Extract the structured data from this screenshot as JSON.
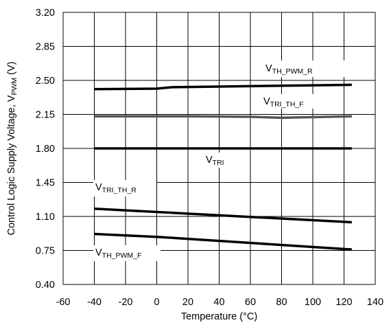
{
  "chart_data": {
    "type": "line",
    "xlabel": "Temperature (°C)",
    "ylabel": {
      "main": "Control Logic Supply Voltage, V",
      "sub": "PWM",
      "unit": " (V)"
    },
    "xlim": [
      -60,
      140
    ],
    "ylim": [
      0.4,
      3.2
    ],
    "xticks": [
      "-60",
      "-40",
      "-20",
      "0",
      "20",
      "40",
      "60",
      "80",
      "100",
      "120",
      "140"
    ],
    "yticks": [
      "0.40",
      "0.75",
      "1.10",
      "1.45",
      "1.80",
      "2.15",
      "2.50",
      "2.85",
      "3.20"
    ],
    "grid": true,
    "series": [
      {
        "label_main": "V",
        "label_sub": "TH_PWM_R",
        "color": "#000000",
        "x": [
          -40,
          0,
          10,
          125
        ],
        "y": [
          2.41,
          2.415,
          2.43,
          2.455
        ]
      },
      {
        "label_main": "V",
        "label_sub": "TRI_TH_F",
        "color": "#555555",
        "x": [
          -40,
          20,
          60,
          80,
          125
        ],
        "y": [
          2.13,
          2.13,
          2.125,
          2.115,
          2.13
        ]
      },
      {
        "label_main": "V",
        "label_sub": "TRI",
        "color": "#000000",
        "x": [
          -40,
          125
        ],
        "y": [
          1.8,
          1.8
        ]
      },
      {
        "label_main": "V",
        "label_sub": "TRI_TH_R",
        "color": "#000000",
        "x": [
          -40,
          125
        ],
        "y": [
          1.18,
          1.04
        ]
      },
      {
        "label_main": "V",
        "label_sub": "TH_PWM_F",
        "color": "#000000",
        "x": [
          -40,
          0,
          125
        ],
        "y": [
          0.92,
          0.89,
          0.76
        ]
      }
    ]
  }
}
